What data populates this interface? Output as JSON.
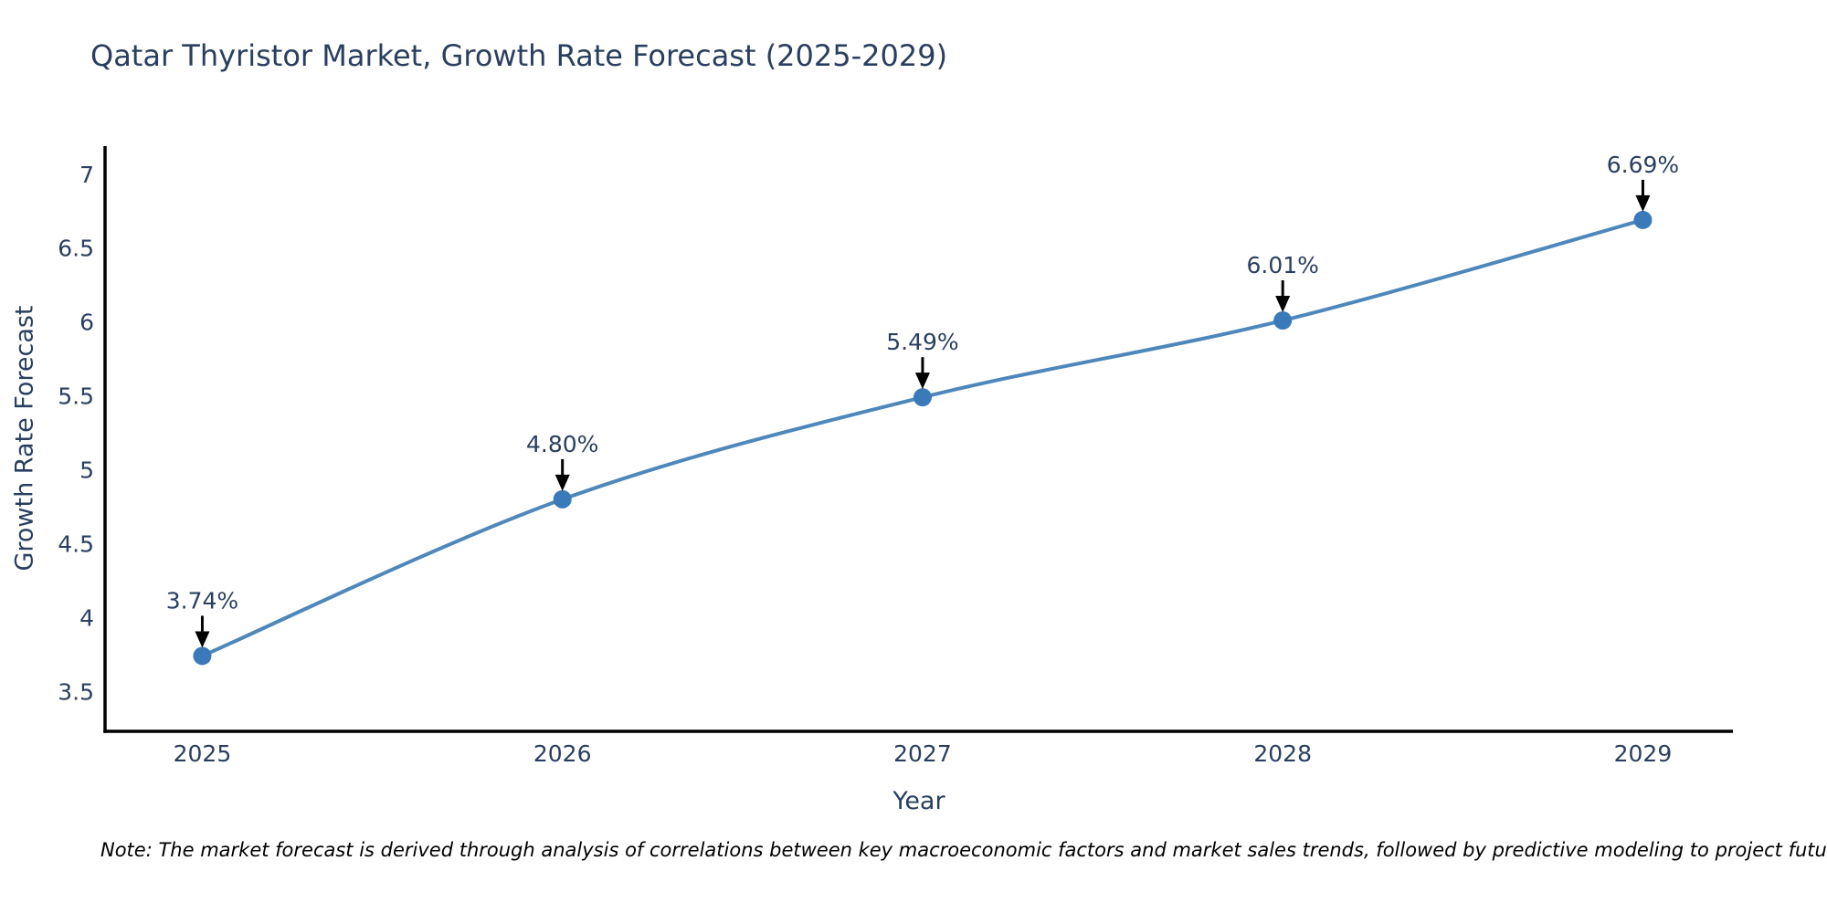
{
  "note": "Note: The market forecast is derived through analysis of correlations between key macroeconomic factors and market sales trends, followed by predictive modeling to project future sales",
  "colors": {
    "text": "#2a3f5f",
    "line": "#4e88bb",
    "marker": "#3b7ab8",
    "axis": "#000000",
    "arrow": "#000000",
    "background": "#ffffff"
  },
  "chart_data": {
    "type": "line",
    "title": "Qatar Thyristor Market, Growth Rate Forecast (2025-2029)",
    "x": [
      2025,
      2026,
      2027,
      2028,
      2029
    ],
    "values": [
      3.74,
      4.8,
      5.49,
      6.01,
      6.69
    ],
    "point_labels": [
      "3.74%",
      "4.80%",
      "5.49%",
      "6.01%",
      "6.69%"
    ],
    "xlabel": "Year",
    "ylabel": "Growth Rate Forecast",
    "xtick_labels": [
      "2025",
      "2026",
      "2027",
      "2028",
      "2029"
    ],
    "ytick_values": [
      3.5,
      4,
      4.5,
      5,
      5.5,
      6,
      6.5,
      7
    ],
    "ytick_labels": [
      "3.5",
      "4",
      "4.5",
      "5",
      "5.5",
      "6",
      "6.5",
      "7"
    ],
    "xlim": [
      2024.73,
      2029.25
    ],
    "ylim": [
      3.23,
      7.19
    ],
    "grid": false,
    "legend": false,
    "smooth": true
  }
}
